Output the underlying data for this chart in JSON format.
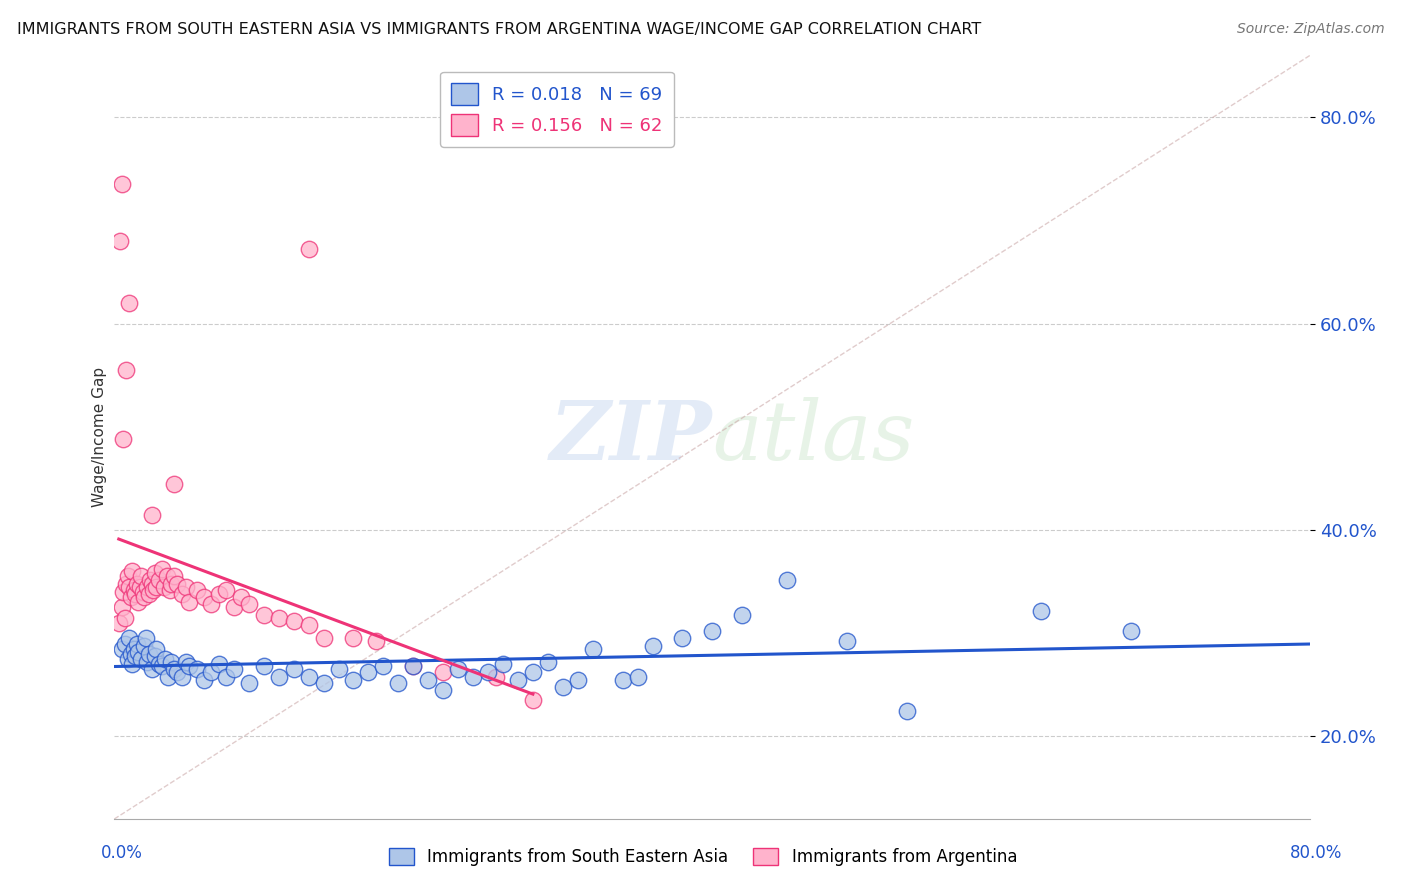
{
  "title": "IMMIGRANTS FROM SOUTH EASTERN ASIA VS IMMIGRANTS FROM ARGENTINA WAGE/INCOME GAP CORRELATION CHART",
  "source": "Source: ZipAtlas.com",
  "xlabel_bottom_left": "0.0%",
  "xlabel_bottom_right": "80.0%",
  "ylabel": "Wage/Income Gap",
  "legend_label_blue": "Immigrants from South Eastern Asia",
  "legend_label_pink": "Immigrants from Argentina",
  "R_blue": 0.018,
  "N_blue": 69,
  "R_pink": 0.156,
  "N_pink": 62,
  "blue_color": "#AEC6E8",
  "pink_color": "#FFB3CC",
  "trend_blue": "#2255CC",
  "trend_pink": "#EE3377",
  "watermark_zip": "ZIP",
  "watermark_atlas": "atlas",
  "xlim": [
    0.0,
    0.8
  ],
  "ylim": [
    0.12,
    0.86
  ],
  "yticks": [
    0.2,
    0.4,
    0.6,
    0.8
  ],
  "ytick_labels": [
    "20.0%",
    "40.0%",
    "60.0%",
    "80.0%"
  ],
  "blue_scatter_x": [
    0.005,
    0.007,
    0.009,
    0.01,
    0.011,
    0.012,
    0.013,
    0.014,
    0.015,
    0.016,
    0.018,
    0.02,
    0.021,
    0.022,
    0.023,
    0.025,
    0.027,
    0.028,
    0.03,
    0.032,
    0.034,
    0.036,
    0.038,
    0.04,
    0.042,
    0.045,
    0.048,
    0.05,
    0.055,
    0.06,
    0.065,
    0.07,
    0.075,
    0.08,
    0.09,
    0.1,
    0.11,
    0.12,
    0.13,
    0.14,
    0.15,
    0.16,
    0.17,
    0.18,
    0.19,
    0.2,
    0.21,
    0.22,
    0.23,
    0.24,
    0.25,
    0.26,
    0.27,
    0.28,
    0.29,
    0.3,
    0.31,
    0.32,
    0.34,
    0.35,
    0.36,
    0.38,
    0.4,
    0.42,
    0.45,
    0.49,
    0.53,
    0.62,
    0.68
  ],
  "blue_scatter_y": [
    0.285,
    0.29,
    0.275,
    0.295,
    0.28,
    0.27,
    0.285,
    0.278,
    0.29,
    0.282,
    0.275,
    0.288,
    0.295,
    0.272,
    0.28,
    0.265,
    0.278,
    0.285,
    0.27,
    0.268,
    0.275,
    0.258,
    0.272,
    0.265,
    0.262,
    0.258,
    0.272,
    0.268,
    0.265,
    0.255,
    0.262,
    0.27,
    0.258,
    0.265,
    0.252,
    0.268,
    0.258,
    0.265,
    0.258,
    0.252,
    0.265,
    0.255,
    0.262,
    0.268,
    0.252,
    0.268,
    0.255,
    0.245,
    0.265,
    0.258,
    0.262,
    0.27,
    0.255,
    0.262,
    0.272,
    0.248,
    0.255,
    0.285,
    0.255,
    0.258,
    0.288,
    0.295,
    0.302,
    0.318,
    0.352,
    0.292,
    0.225,
    0.322,
    0.302
  ],
  "pink_scatter_x": [
    0.003,
    0.005,
    0.006,
    0.007,
    0.008,
    0.009,
    0.01,
    0.011,
    0.012,
    0.013,
    0.014,
    0.015,
    0.016,
    0.017,
    0.018,
    0.019,
    0.02,
    0.022,
    0.023,
    0.024,
    0.025,
    0.026,
    0.027,
    0.028,
    0.03,
    0.032,
    0.033,
    0.035,
    0.037,
    0.038,
    0.04,
    0.042,
    0.045,
    0.048,
    0.05,
    0.055,
    0.06,
    0.065,
    0.07,
    0.075,
    0.08,
    0.085,
    0.09,
    0.1,
    0.11,
    0.12,
    0.13,
    0.14,
    0.16,
    0.175,
    0.2,
    0.22,
    0.255,
    0.28,
    0.006,
    0.008,
    0.01,
    0.025,
    0.04,
    0.004,
    0.005,
    0.13
  ],
  "pink_scatter_y": [
    0.31,
    0.325,
    0.34,
    0.315,
    0.348,
    0.355,
    0.345,
    0.335,
    0.36,
    0.342,
    0.338,
    0.348,
    0.33,
    0.345,
    0.355,
    0.34,
    0.335,
    0.345,
    0.338,
    0.352,
    0.348,
    0.342,
    0.358,
    0.345,
    0.352,
    0.362,
    0.345,
    0.355,
    0.342,
    0.348,
    0.355,
    0.348,
    0.338,
    0.345,
    0.33,
    0.342,
    0.335,
    0.328,
    0.338,
    0.342,
    0.325,
    0.335,
    0.328,
    0.318,
    0.315,
    0.312,
    0.308,
    0.295,
    0.295,
    0.292,
    0.268,
    0.262,
    0.258,
    0.235,
    0.488,
    0.555,
    0.62,
    0.415,
    0.445,
    0.68,
    0.735,
    0.672
  ]
}
